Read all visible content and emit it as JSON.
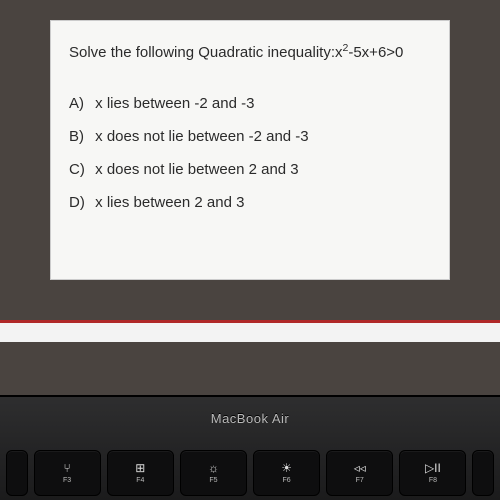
{
  "card": {
    "prompt_prefix": "Solve the following Quadratic inequality:",
    "expr_base1": "x",
    "expr_sup": "2",
    "expr_tail": "-5x+6>0",
    "options": [
      {
        "label": "A)",
        "text": "x lies between -2 and -3"
      },
      {
        "label": "B)",
        "text": "x does not lie between -2 and -3"
      },
      {
        "label": "C)",
        "text": "x does not lie between 2 and 3"
      },
      {
        "label": "D)",
        "text": "x lies between 2 and 3"
      }
    ],
    "bg": "#f7f7f5",
    "border": "#cccccc",
    "text_color": "#2b2b2b"
  },
  "laptop": {
    "brand": "MacBook Air",
    "keys": [
      {
        "glyph": "⑂",
        "label": "F3"
      },
      {
        "glyph": "⊞",
        "label": "F4"
      },
      {
        "glyph": "☼",
        "label": "F5"
      },
      {
        "glyph": "☀",
        "label": "F6"
      },
      {
        "glyph": "◃◃",
        "label": "F7"
      },
      {
        "glyph": "▷II",
        "label": "F8"
      }
    ],
    "left_glyph": "✳"
  }
}
